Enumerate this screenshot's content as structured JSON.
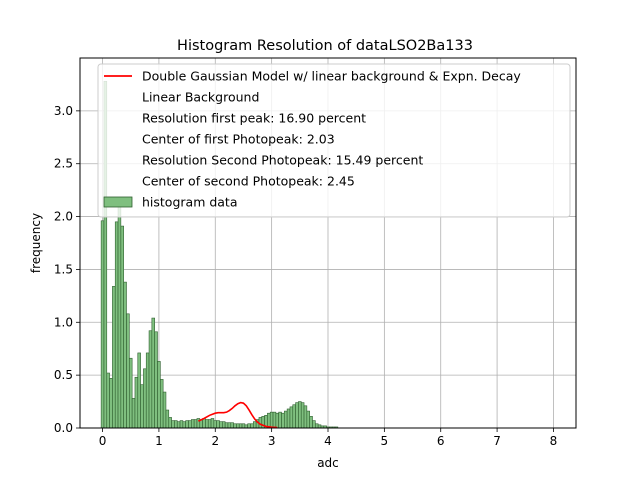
{
  "chart_data": {
    "type": "bar",
    "title": "Histogram Resolution of dataLSO2Ba133",
    "xlabel": "adc",
    "ylabel": "frequency",
    "xlim": [
      -0.4,
      8.4
    ],
    "ylim": [
      0,
      3.5
    ],
    "xticks": [
      0,
      1,
      2,
      3,
      4,
      5,
      6,
      7,
      8
    ],
    "yticks": [
      0.0,
      0.5,
      1.0,
      1.5,
      2.0,
      2.5,
      3.0
    ],
    "grid": true,
    "legend_position": "upper-right",
    "colors": {
      "hist_fill": "#7fbf7f",
      "hist_edge": "#2f5f2f",
      "model_line": "#ff0000",
      "grid": "#b0b0b0"
    },
    "legend": [
      {
        "label": "Double Gaussian Model w/ linear background & Expn. Decay",
        "marker": "line"
      },
      {
        "label": "Linear Background",
        "marker": "none"
      },
      {
        "label": "Resolution first peak: 16.90 percent",
        "marker": "none"
      },
      {
        "label": "Center of first Photopeak: 2.03",
        "marker": "none"
      },
      {
        "label": "Resolution Second Photopeak: 15.49 percent",
        "marker": "none"
      },
      {
        "label": "Center of second Photopeak: 2.45",
        "marker": "none"
      },
      {
        "label": "histogram data",
        "marker": "patch"
      }
    ],
    "histogram": {
      "bin_width": 0.05,
      "bin_start": -0.025,
      "values": [
        1.96,
        3.28,
        0.52,
        0.47,
        1.34,
        1.95,
        2.12,
        1.91,
        1.38,
        1.08,
        0.66,
        0.28,
        0.48,
        0.71,
        0.41,
        0.56,
        0.71,
        0.92,
        1.04,
        0.91,
        0.63,
        0.46,
        0.34,
        0.17,
        0.1,
        0.07,
        0.07,
        0.06,
        0.07,
        0.06,
        0.07,
        0.07,
        0.08,
        0.08,
        0.09,
        0.08,
        0.09,
        0.08,
        0.08,
        0.09,
        0.07,
        0.07,
        0.06,
        0.06,
        0.05,
        0.05,
        0.05,
        0.04,
        0.04,
        0.04,
        0.04,
        0.03,
        0.04,
        0.04,
        0.06,
        0.08,
        0.1,
        0.11,
        0.12,
        0.14,
        0.15,
        0.15,
        0.14,
        0.15,
        0.14,
        0.16,
        0.18,
        0.2,
        0.22,
        0.24,
        0.25,
        0.24,
        0.21,
        0.16,
        0.11,
        0.07,
        0.04,
        0.03,
        0.02,
        0.02,
        0.01,
        0.01,
        0.01,
        0.01
      ]
    },
    "model_curve": {
      "x": [
        1.7,
        1.8,
        1.9,
        2.0,
        2.05,
        2.1,
        2.15,
        2.2,
        2.25,
        2.3,
        2.35,
        2.4,
        2.45,
        2.5,
        2.55,
        2.6,
        2.65,
        2.7,
        2.75,
        2.8,
        2.9,
        3.0,
        3.1
      ],
      "y": [
        0.065,
        0.09,
        0.12,
        0.14,
        0.145,
        0.145,
        0.145,
        0.15,
        0.165,
        0.185,
        0.21,
        0.23,
        0.24,
        0.235,
        0.21,
        0.17,
        0.125,
        0.085,
        0.055,
        0.035,
        0.015,
        0.008,
        0.004
      ]
    }
  }
}
